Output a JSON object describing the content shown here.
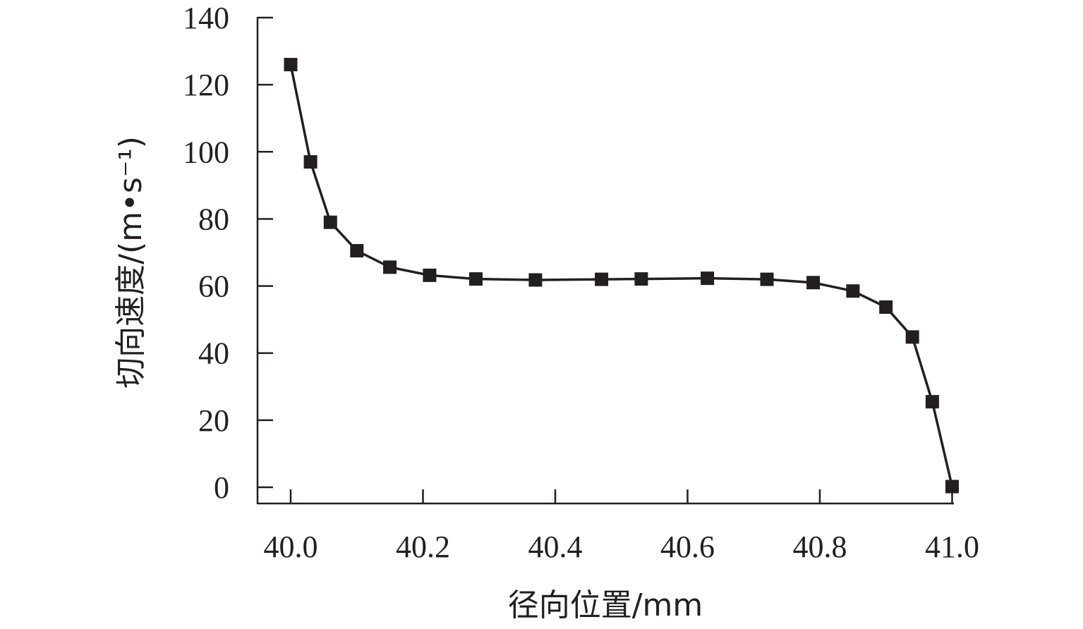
{
  "chart_data": {
    "type": "line",
    "title": "",
    "xlabel": "径向位置/mm",
    "ylabel": "切向速度/(m•s⁻¹)",
    "xlim": [
      39.95,
      41.0
    ],
    "ylim": [
      -5,
      140
    ],
    "xticks": [
      "40.0",
      "40.2",
      "40.4",
      "40.6",
      "40.8",
      "41.0"
    ],
    "yticks": [
      "0",
      "20",
      "40",
      "60",
      "80",
      "100",
      "120",
      "140"
    ],
    "grid": false,
    "legend": "none",
    "marker": "square",
    "line_color": "#231f20",
    "series": [
      {
        "x": [
          40.0,
          40.03,
          40.06,
          40.1,
          40.15,
          40.21,
          40.28,
          40.37,
          40.47,
          40.53,
          40.63,
          40.72,
          40.79,
          40.85,
          40.9,
          40.94,
          40.97,
          41.0
        ],
        "values": [
          126,
          97,
          79,
          70.5,
          65.6,
          63.2,
          62.1,
          61.8,
          62,
          62.1,
          62.3,
          62,
          61,
          58.5,
          53.7,
          44.8,
          25.5,
          0.2
        ]
      }
    ]
  }
}
